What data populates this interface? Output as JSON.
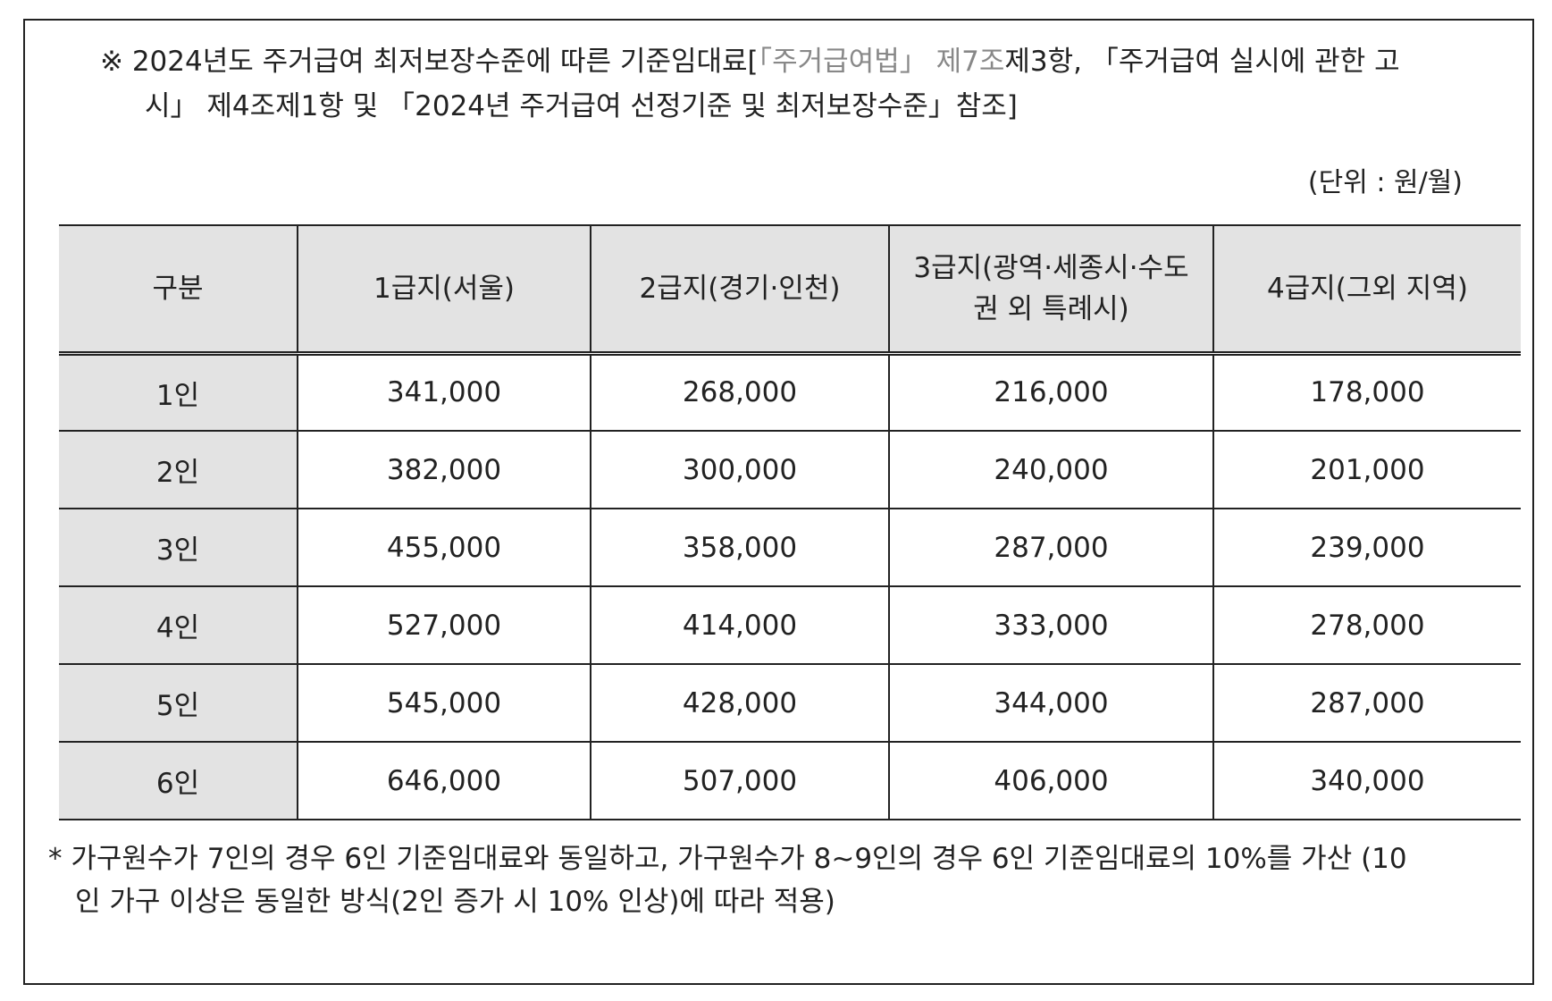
{
  "note": {
    "line1_a": "※ 2024년도 주거급여 최저보장수준에 따른 기준임대료[",
    "line1_gray": "「주거급여법」 제7조",
    "line1_b": "제3항, 「주거급여 실시에 관한 고",
    "line2": "시」 제4조제1항 및 「2024년 주거급여 선정기준 및 최저보장수준」참조]"
  },
  "unit": "(단위 : 원/월)",
  "table": {
    "header": {
      "col0": "구분",
      "col1": "1급지(서울)",
      "col2": "2급지(경기·인천)",
      "col3_line1": "3급지(광역·세종시·수도",
      "col3_line2": "권 외 특례시)",
      "col4": "4급지(그외 지역)"
    },
    "rows": [
      {
        "label": "1인",
        "v1": "341,000",
        "v2": "268,000",
        "v3": "216,000",
        "v4": "178,000"
      },
      {
        "label": "2인",
        "v1": "382,000",
        "v2": "300,000",
        "v3": "240,000",
        "v4": "201,000"
      },
      {
        "label": "3인",
        "v1": "455,000",
        "v2": "358,000",
        "v3": "287,000",
        "v4": "239,000"
      },
      {
        "label": "4인",
        "v1": "527,000",
        "v2": "414,000",
        "v3": "333,000",
        "v4": "278,000"
      },
      {
        "label": "5인",
        "v1": "545,000",
        "v2": "428,000",
        "v3": "344,000",
        "v4": "287,000"
      },
      {
        "label": "6인",
        "v1": "646,000",
        "v2": "507,000",
        "v3": "406,000",
        "v4": "340,000"
      }
    ]
  },
  "footnote": {
    "line1": "* 가구원수가 7인의 경우 6인 기준임대료와 동일하고, 가구원수가 8~9인의 경우 6인 기준임대료의 10%를 가산 (10",
    "line2": "인 가구 이상은 동일한 방식(2인 증가 시 10% 인상)에 따라 적용)"
  }
}
